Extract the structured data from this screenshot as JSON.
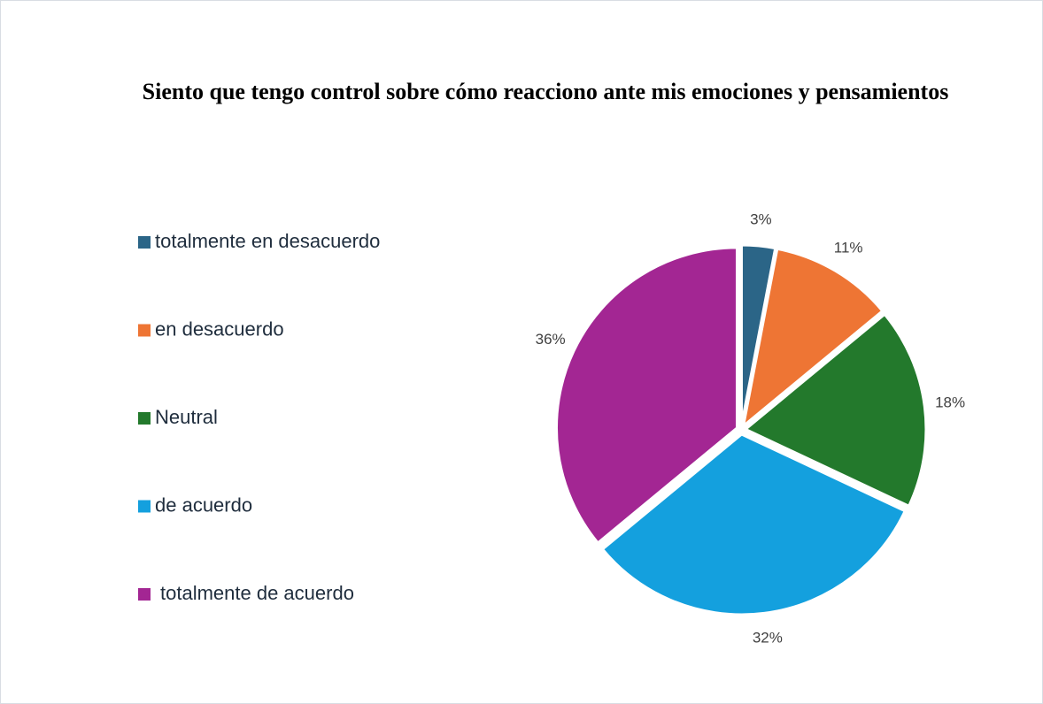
{
  "chart_data": {
    "type": "pie",
    "title": "Siento que tengo control sobre cómo reacciono ante mis emociones y pensamientos",
    "categories": [
      "totalmente en desacuerdo",
      "en desacuerdo",
      "Neutral",
      "de acuerdo",
      "totalmente de acuerdo"
    ],
    "values": [
      3,
      11,
      18,
      32,
      36
    ],
    "value_labels": [
      "3%",
      "11%",
      "18%",
      "32%",
      "36%"
    ],
    "colors": [
      "#2b6587",
      "#ee7534",
      "#23792c",
      "#14a0de",
      "#a32693"
    ],
    "legend": "left"
  }
}
